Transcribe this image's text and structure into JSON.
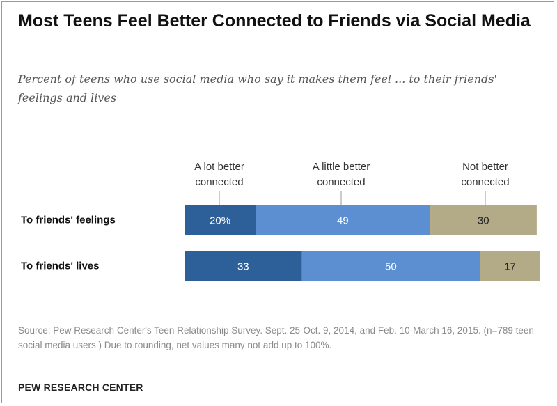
{
  "title": "Most Teens Feel Better Connected to Friends via Social Media",
  "subtitle": "Percent of teens who use social media who say it makes them feel ... to their friends' feelings and lives",
  "source_note": "Source: Pew Research Center's Teen Relationship Survey. Sept. 25-Oct. 9, 2014, and Feb. 10-March 16, 2015. (n=789 teen social media users.) Due to rounding, net values many not add up to 100%.",
  "brand": "PEW RESEARCH CENTER",
  "colors": {
    "a_lot_better": "#2d5f98",
    "a_little_better": "#5b8fd1",
    "not_better": "#b3aa88"
  },
  "chart_data": {
    "type": "bar",
    "orientation": "horizontal",
    "stacked": true,
    "categories": [
      "To friends' feelings",
      "To friends' lives"
    ],
    "series": [
      {
        "name": "A lot better connected",
        "values": [
          20,
          33
        ],
        "labels": [
          "20%",
          "33"
        ],
        "color": "#2d5f98"
      },
      {
        "name": "A little better connected",
        "values": [
          49,
          50
        ],
        "labels": [
          "49",
          "50"
        ],
        "color": "#5b8fd1"
      },
      {
        "name": "Not better connected",
        "values": [
          30,
          17
        ],
        "labels": [
          "30",
          "17"
        ],
        "color": "#b3aa88"
      }
    ],
    "legend_position": "top",
    "xlim": [
      0,
      100
    ],
    "grid": false
  }
}
